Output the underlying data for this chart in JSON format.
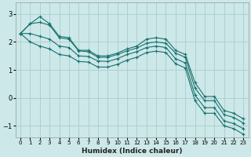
{
  "xlabel": "Humidex (Indice chaleur)",
  "bg_color": "#cce8e8",
  "grid_color": "#b0d0d0",
  "line_color": "#1a7070",
  "xlim": [
    -0.5,
    23.5
  ],
  "ylim": [
    -1.4,
    3.4
  ],
  "xticks": [
    0,
    1,
    2,
    3,
    4,
    5,
    6,
    7,
    8,
    9,
    10,
    11,
    12,
    13,
    14,
    15,
    16,
    17,
    18,
    19,
    20,
    21,
    22,
    23
  ],
  "yticks": [
    -1,
    0,
    1,
    2,
    3
  ],
  "series": [
    [
      2.3,
      2.65,
      2.9,
      2.65,
      2.2,
      2.15,
      1.7,
      1.7,
      1.5,
      1.5,
      1.6,
      1.75,
      1.85,
      2.1,
      2.15,
      2.1,
      1.7,
      1.55,
      0.55,
      0.05,
      0.05,
      -0.45,
      -0.55,
      -0.75
    ],
    [
      2.3,
      2.65,
      2.7,
      2.6,
      2.15,
      2.1,
      1.68,
      1.65,
      1.45,
      1.45,
      1.55,
      1.68,
      1.78,
      1.95,
      2.0,
      1.95,
      1.6,
      1.45,
      0.35,
      -0.1,
      -0.1,
      -0.6,
      -0.7,
      -0.9
    ],
    [
      2.3,
      2.3,
      2.2,
      2.1,
      1.85,
      1.8,
      1.5,
      1.48,
      1.32,
      1.3,
      1.4,
      1.55,
      1.65,
      1.8,
      1.85,
      1.8,
      1.4,
      1.25,
      0.1,
      -0.35,
      -0.35,
      -0.82,
      -0.92,
      -1.1
    ],
    [
      2.3,
      2.0,
      1.85,
      1.75,
      1.55,
      1.5,
      1.3,
      1.28,
      1.1,
      1.1,
      1.2,
      1.35,
      1.45,
      1.62,
      1.67,
      1.62,
      1.22,
      1.07,
      -0.1,
      -0.55,
      -0.55,
      -1.0,
      -1.1,
      -1.3
    ]
  ]
}
